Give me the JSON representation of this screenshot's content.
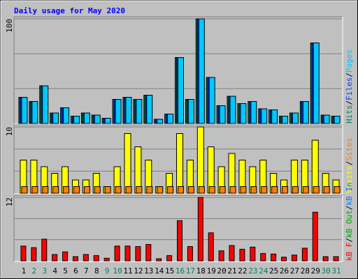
{
  "title": "Daily usage for May 2020",
  "chart_data": [
    {
      "type": "bar",
      "categories": [
        "1",
        "2",
        "3",
        "4",
        "5",
        "6",
        "7",
        "8",
        "9",
        "10",
        "11",
        "12",
        "13",
        "14",
        "15",
        "16",
        "17",
        "18",
        "19",
        "20",
        "21",
        "22",
        "23",
        "24",
        "25",
        "26",
        "27",
        "28",
        "29",
        "30",
        "31"
      ],
      "category_colors": [
        "#000000",
        "#00805c",
        "#00805c",
        "#000000",
        "#000000",
        "#000000",
        "#000000",
        "#000000",
        "#00805c",
        "#00805c",
        "#000000",
        "#000000",
        "#000000",
        "#000000",
        "#000000",
        "#00805c",
        "#00805c",
        "#000000",
        "#000000",
        "#000000",
        "#000000",
        "#000000",
        "#00805c",
        "#00805c",
        "#000000",
        "#000000",
        "#000000",
        "#000000",
        "#000000",
        "#00805c",
        "#00805c"
      ],
      "ylim": [
        0,
        100
      ],
      "yticks": [
        100
      ],
      "series": [
        {
          "name": "Hits",
          "color": "#00805c",
          "values": [
            25,
            21,
            36,
            10,
            15,
            7,
            10,
            8,
            5,
            23,
            25,
            23,
            27,
            4,
            9,
            63,
            23,
            100,
            44,
            17,
            26,
            19,
            21,
            14,
            13,
            7,
            10,
            21,
            77,
            8,
            7
          ]
        },
        {
          "name": "Files",
          "color": "#0040ff",
          "values": [
            25,
            21,
            36,
            10,
            15,
            7,
            10,
            8,
            5,
            23,
            25,
            23,
            27,
            4,
            9,
            63,
            23,
            100,
            44,
            17,
            26,
            19,
            21,
            14,
            13,
            7,
            10,
            21,
            77,
            8,
            7
          ]
        },
        {
          "name": "Pages",
          "color": "#00c8ff",
          "values": [
            25,
            21,
            36,
            10,
            15,
            7,
            10,
            8,
            5,
            23,
            25,
            23,
            27,
            4,
            9,
            63,
            23,
            100,
            44,
            17,
            26,
            19,
            21,
            14,
            13,
            7,
            10,
            21,
            77,
            8,
            7
          ]
        }
      ]
    },
    {
      "type": "bar",
      "ylim": [
        0,
        10
      ],
      "yticks": [
        10
      ],
      "series": [
        {
          "name": "Visits",
          "color": "#ffff00",
          "values": [
            5,
            5,
            4,
            3,
            4,
            2,
            2,
            3,
            1,
            4,
            9,
            7,
            5,
            1,
            3,
            9,
            5,
            10,
            7,
            4,
            6,
            5,
            4,
            5,
            3,
            2,
            5,
            5,
            8,
            3,
            2
          ]
        },
        {
          "name": "Sites",
          "color": "#ff8000",
          "values": [
            1,
            1,
            1,
            1,
            1,
            1,
            1,
            1,
            1,
            1,
            1,
            1,
            1,
            1,
            1,
            1,
            1,
            1,
            1,
            1,
            1,
            1,
            1,
            1,
            1,
            1,
            1,
            1,
            1,
            1,
            1
          ]
        }
      ]
    },
    {
      "type": "bar",
      "ylim": [
        0,
        12
      ],
      "yticks": [
        12
      ],
      "series": [
        {
          "name": "kB F",
          "color": "#ff0000",
          "values": [
            2.8,
            2.5,
            4.1,
            1.2,
            1.7,
            0.8,
            1.2,
            1.0,
            0.5,
            2.8,
            2.8,
            2.7,
            3.1,
            0.4,
            1.0,
            7.6,
            2.7,
            12,
            5.3,
            1.9,
            2.9,
            2.2,
            2.6,
            1.4,
            1.3,
            0.7,
            1.1,
            2.4,
            9.2,
            0.8,
            0.8
          ]
        },
        {
          "name": "kB Out",
          "color": "#00a000",
          "values": [
            null,
            null,
            null,
            null,
            null,
            null,
            null,
            null,
            null,
            null,
            null,
            null,
            null,
            null,
            null,
            null,
            null,
            null,
            null,
            null,
            null,
            null,
            null,
            null,
            null,
            null,
            null,
            null,
            null,
            null,
            null
          ]
        },
        {
          "name": "kB In",
          "color": "#0080ff",
          "values": [
            null,
            null,
            null,
            null,
            null,
            null,
            null,
            null,
            null,
            null,
            null,
            null,
            null,
            null,
            null,
            null,
            null,
            null,
            null,
            null,
            null,
            null,
            null,
            null,
            null,
            null,
            null,
            null,
            null,
            null,
            null
          ]
        }
      ]
    }
  ]
}
